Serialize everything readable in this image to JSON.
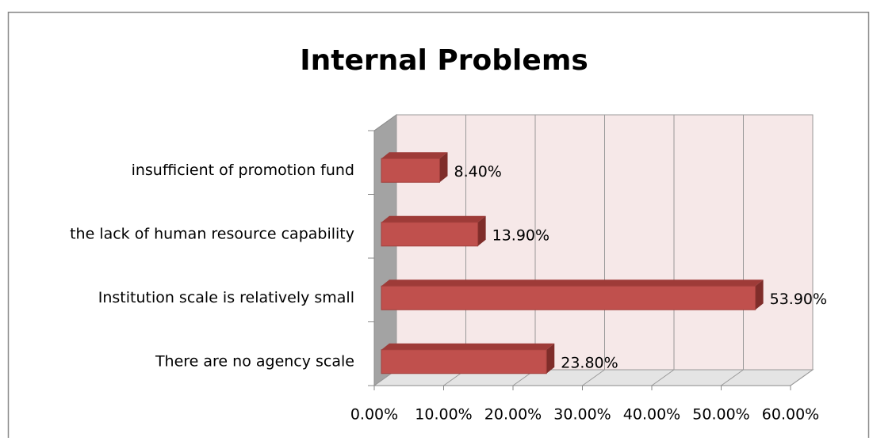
{
  "chart_data": {
    "type": "bar3d",
    "title": "Internal Problems",
    "categories": [
      "insufficient of promotion fund",
      "the lack of human resource capability",
      "Institution scale is relatively small",
      "There are no agency scale"
    ],
    "values": [
      8.4,
      13.9,
      53.9,
      23.8
    ],
    "value_labels": [
      "8.40%",
      "13.90%",
      "53.90%",
      "23.80%"
    ],
    "color": "#c0504d",
    "xlim": [
      0,
      60
    ],
    "xticks": [
      {
        "value": 0,
        "label": "0.00%"
      },
      {
        "value": 10,
        "label": "10.00%"
      },
      {
        "value": 20,
        "label": "20.00%"
      },
      {
        "value": 30,
        "label": "30.00%"
      },
      {
        "value": 40,
        "label": "40.00%"
      },
      {
        "value": 50,
        "label": "50.00%"
      },
      {
        "value": 60,
        "label": "60.00%"
      }
    ],
    "grid": true
  }
}
